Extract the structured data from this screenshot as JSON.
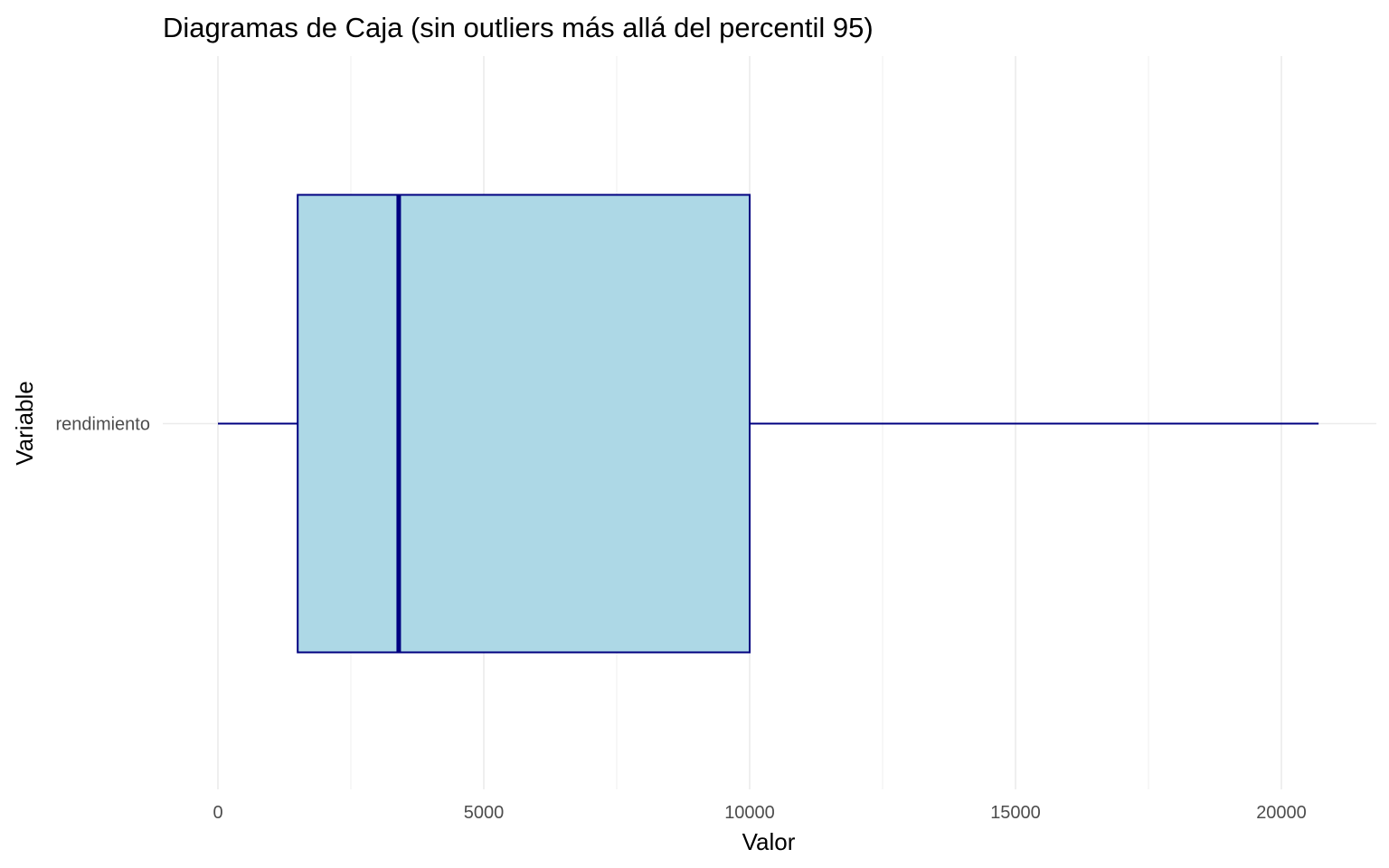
{
  "chart_data": {
    "type": "boxplot",
    "orientation": "horizontal",
    "title": "Diagramas de Caja (sin outliers más allá del percentil 95)",
    "xlabel": "Valor",
    "ylabel": "Variable",
    "xlim": [
      -1000,
      21200
    ],
    "x_ticks": [
      0,
      5000,
      10000,
      15000,
      20000
    ],
    "x_tick_labels": [
      "0",
      "5000",
      "10000",
      "15000",
      "20000"
    ],
    "categories": [
      "rendimiento"
    ],
    "boxes": [
      {
        "category": "rendimiento",
        "whisker_low": 0,
        "q1": 1500,
        "median": 3400,
        "q3": 10000,
        "whisker_high": 20700
      }
    ],
    "grid": true,
    "legend": "none",
    "colors": {
      "box_fill": "#ADD8E6",
      "box_line": "#000080",
      "grid": "#ebebeb",
      "tick_text": "#4d4d4d",
      "title_text": "#000000"
    }
  }
}
